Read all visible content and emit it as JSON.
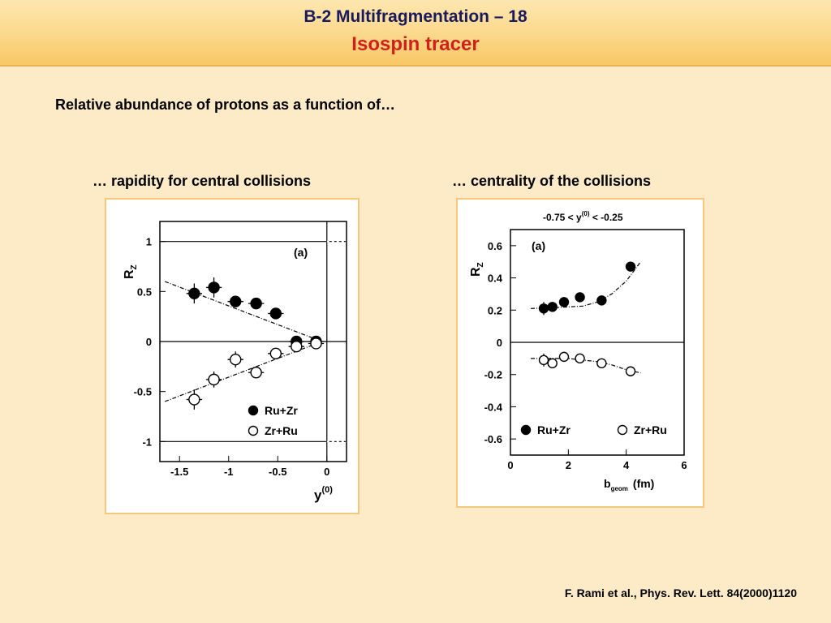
{
  "title": {
    "main": "B-2 Multifragmentation – 18",
    "sub": "Isospin tracer"
  },
  "intro": "Relative abundance of protons as a function of…",
  "citation": "F. Rami et al., Phys. Rev. Lett. 84(2000)1120",
  "colors": {
    "title_bar": "#fbd88a",
    "subtitle": "#d0201c",
    "background": "#fdebc8",
    "panel_border": "#f5c979"
  },
  "chart_data": [
    {
      "type": "scatter",
      "heading": "… rapidity for central collisions",
      "panel_label": "(a)",
      "xlabel": "y",
      "xlabel_sup": "(0)",
      "ylabel": "R",
      "ylabel_sub": "Z",
      "xlim": [
        -1.7,
        0.2
      ],
      "ylim": [
        -1.2,
        1.2
      ],
      "xticks": [
        -1.5,
        -1,
        -0.5,
        0
      ],
      "xtick_labels": [
        "-1.5",
        "-1",
        "-0.5",
        "0"
      ],
      "yticks": [
        1,
        0.5,
        0,
        -0.5,
        -1
      ],
      "ytick_labels": [
        "1",
        "0.5",
        "0",
        "-0.5",
        "-1"
      ],
      "reference_lines": {
        "horizontal": [
          1,
          0,
          -1
        ],
        "vertical": [
          0
        ]
      },
      "legend_position": "bottom-right",
      "series": [
        {
          "name": "Ru+Zr",
          "marker": "filled-circle",
          "x": [
            -1.35,
            -1.15,
            -0.93,
            -0.72,
            -0.52,
            -0.31,
            -0.11
          ],
          "y": [
            0.48,
            0.54,
            0.4,
            0.38,
            0.28,
            0.0,
            0.0
          ],
          "xerr": [
            0.08,
            0.08,
            0.08,
            0.08,
            0.08,
            0.08,
            0.08
          ],
          "yerr": [
            0.1,
            0.1,
            0.05,
            0.05,
            0.05,
            0.05,
            0.05
          ]
        },
        {
          "name": "Zr+Ru",
          "marker": "open-circle",
          "x": [
            -1.35,
            -1.15,
            -0.93,
            -0.72,
            -0.52,
            -0.31,
            -0.11
          ],
          "y": [
            -0.58,
            -0.38,
            -0.18,
            -0.31,
            -0.12,
            -0.05,
            -0.02
          ],
          "xerr": [
            0.08,
            0.08,
            0.08,
            0.08,
            0.08,
            0.08,
            0.08
          ],
          "yerr": [
            0.1,
            0.08,
            0.08,
            0.05,
            0.05,
            0.05,
            0.05
          ]
        }
      ],
      "fit_lines": [
        {
          "x": [
            -1.65,
            -0.05
          ],
          "y": [
            0.6,
            0.0
          ]
        },
        {
          "x": [
            -1.65,
            -0.05
          ],
          "y": [
            -0.6,
            0.0
          ]
        }
      ]
    },
    {
      "type": "scatter",
      "heading": "… centrality of the collisions",
      "panel_label": "(a)",
      "annotation": "-0.75 < y",
      "annotation_sup": "(0)",
      "annotation_tail": " < -0.25",
      "xlabel": "b",
      "xlabel_sub": "geom",
      "xlabel_tail": "(fm)",
      "ylabel": "R",
      "ylabel_sub": "Z",
      "xlim": [
        0,
        6
      ],
      "ylim": [
        -0.7,
        0.7
      ],
      "xticks": [
        0,
        2,
        4,
        6
      ],
      "xtick_labels": [
        "0",
        "2",
        "4",
        "6"
      ],
      "yticks": [
        0.6,
        0.4,
        0.2,
        0,
        -0.2,
        -0.4,
        -0.6
      ],
      "ytick_labels": [
        "0.6",
        "0.4",
        "0.2",
        "0",
        "-0.2",
        "-0.4",
        "-0.6"
      ],
      "reference_lines": {
        "horizontal": [
          0
        ],
        "vertical": []
      },
      "legend_position": "bottom",
      "series": [
        {
          "name": "Ru+Zr",
          "marker": "filled-circle",
          "x": [
            1.15,
            1.45,
            1.85,
            2.4,
            3.15,
            4.15
          ],
          "y": [
            0.21,
            0.22,
            0.25,
            0.28,
            0.26,
            0.47
          ],
          "xerr": [
            0.1,
            0.1,
            0.1,
            0.1,
            0.1,
            0.05
          ],
          "yerr": [
            0.04,
            0.03,
            0.03,
            0.03,
            0.03,
            0.02
          ]
        },
        {
          "name": "Zr+Ru",
          "marker": "open-circle",
          "x": [
            1.15,
            1.45,
            1.85,
            2.4,
            3.15,
            4.15
          ],
          "y": [
            -0.11,
            -0.13,
            -0.09,
            -0.1,
            -0.13,
            -0.18
          ],
          "xerr": [
            0.1,
            0.1,
            0.1,
            0.1,
            0.1,
            0.1
          ],
          "yerr": [
            0.04,
            0.03,
            0.03,
            0.02,
            0.02,
            0.02
          ]
        }
      ],
      "fit_lines": [
        {
          "x": [
            0.7,
            1.5,
            2.5,
            3.0,
            3.5,
            4.0,
            4.5
          ],
          "y": [
            0.21,
            0.215,
            0.225,
            0.25,
            0.3,
            0.38,
            0.5
          ]
        },
        {
          "x": [
            0.7,
            2.0,
            3.0,
            3.5,
            4.0,
            4.5
          ],
          "y": [
            -0.1,
            -0.1,
            -0.12,
            -0.14,
            -0.17,
            -0.19
          ]
        }
      ]
    }
  ]
}
